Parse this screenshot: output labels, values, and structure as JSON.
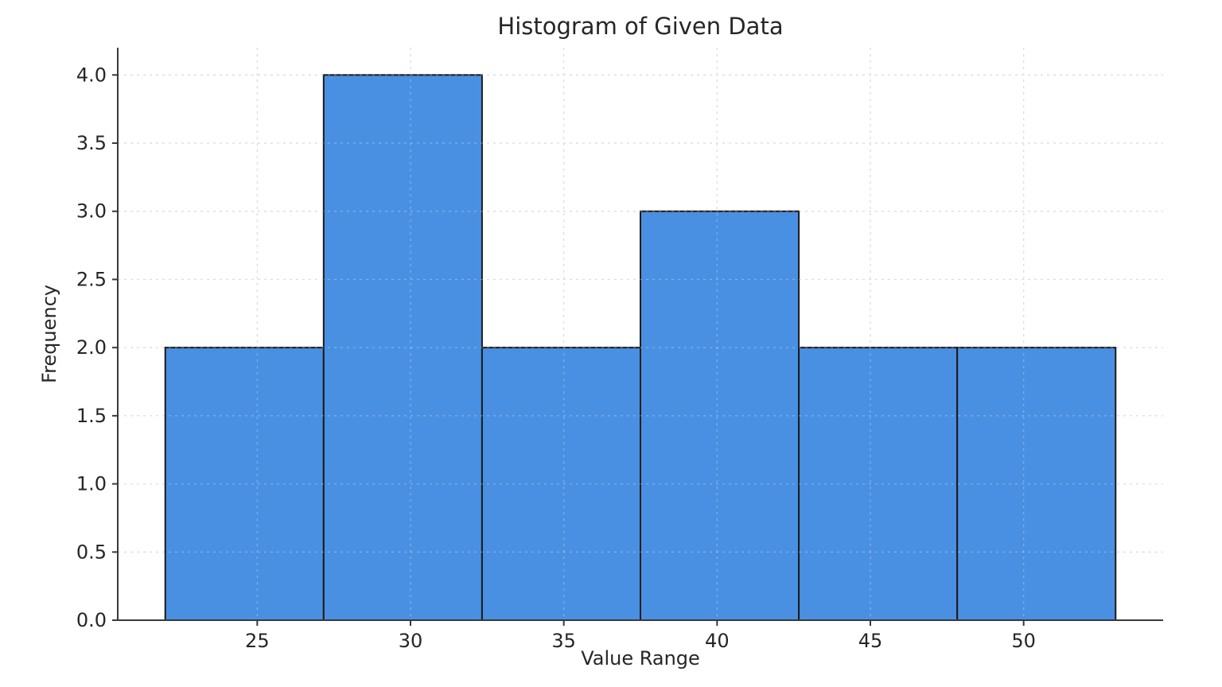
{
  "chart_data": {
    "type": "bar",
    "subtype": "histogram",
    "title": "Histogram of Given Data",
    "xlabel": "Value Range",
    "ylabel": "Frequency",
    "bin_edges": [
      22,
      27.1667,
      32.3333,
      37.5,
      42.6667,
      47.8333,
      53
    ],
    "frequencies": [
      2,
      4,
      2,
      3,
      2,
      2
    ],
    "x_ticks": [
      25,
      30,
      35,
      40,
      45,
      50
    ],
    "y_ticks": [
      0.0,
      0.5,
      1.0,
      1.5,
      2.0,
      2.5,
      3.0,
      3.5,
      4.0
    ],
    "xlim": [
      20.45,
      54.55
    ],
    "ylim": [
      0,
      4.2
    ],
    "grid": true,
    "legend": false,
    "colors": {
      "bar_fill": "#4a90e2",
      "bar_edge": "#1a1a1a",
      "grid_line": "#cdcdcd",
      "grid_overlay_on_bars": "rgba(255,255,255,0.30)",
      "spine": "#3a3a3a",
      "tick": "#3a3a3a",
      "text": "#262626",
      "background": "#ffffff"
    }
  }
}
